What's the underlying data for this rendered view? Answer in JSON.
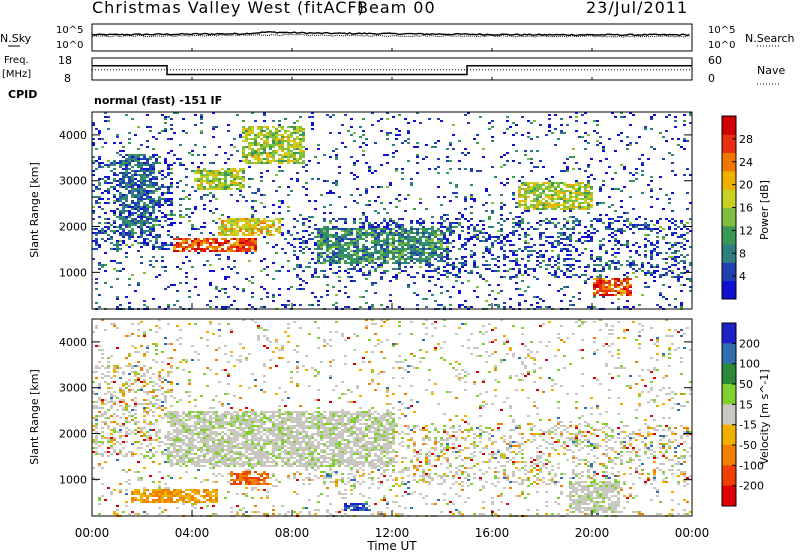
{
  "header": {
    "station": "Christmas Valley West (fitACF)",
    "beam": "Beam 00",
    "date": "23/Jul/2011"
  },
  "top_panels": {
    "noise_label": "N.Sky",
    "noise_right_label": "N.Search",
    "noise_ticks": [
      "10^5",
      "10^0"
    ],
    "freq_label_1": "Freq.",
    "freq_label_2": "[MHz]",
    "freq_ticks": [
      "18",
      "8"
    ],
    "nave_label": "Nave",
    "nave_ticks": [
      "60",
      "0"
    ],
    "cpid_label": "CPID",
    "cpid_text": "normal (fast) -151 IF"
  },
  "axes": {
    "x_label": "Time UT",
    "x_ticks": [
      "00:00",
      "04:00",
      "08:00",
      "12:00",
      "16:00",
      "20:00",
      "00:00"
    ],
    "y_label": "Slant Range [km]",
    "y_ticks": [
      "1000",
      "2000",
      "3000",
      "4000"
    ]
  },
  "chart_data": [
    {
      "type": "line",
      "name": "noise",
      "x_hours": [
        0,
        3,
        6,
        7,
        9,
        12,
        15,
        18,
        21,
        24
      ],
      "series": [
        {
          "name": "N.Sky",
          "values": [
            3.0,
            3.1,
            3.2,
            3.5,
            3.3,
            3.2,
            3.1,
            3.0,
            3.0,
            3.0
          ]
        },
        {
          "name": "N.Search",
          "values": [
            2.7,
            2.8,
            2.9,
            3.0,
            2.9,
            2.8,
            2.8,
            2.7,
            2.7,
            2.7
          ]
        }
      ],
      "ylim": [
        0,
        5
      ]
    },
    {
      "type": "line",
      "name": "frequency_nave",
      "series": [
        {
          "name": "Freq",
          "x": [
            0,
            3,
            3,
            15,
            15,
            24
          ],
          "values": [
            14.5,
            14.5,
            10.5,
            10.5,
            14.5,
            14.5
          ]
        },
        {
          "name": "Nave",
          "x": [
            0,
            24
          ],
          "values": [
            28,
            28
          ]
        }
      ],
      "freq_ylim": [
        8,
        18
      ],
      "nave_ylim": [
        0,
        60
      ]
    },
    {
      "type": "heatmap",
      "name": "power",
      "xlim": [
        0,
        24
      ],
      "ylim": [
        200,
        4500
      ],
      "colorbar": {
        "label": "Power [dB]",
        "ticks": [
          "4",
          "8",
          "12",
          "16",
          "20",
          "24",
          "28"
        ],
        "colors": [
          "#1010d0",
          "#2040b0",
          "#2f7f80",
          "#3a9a55",
          "#7fbf3f",
          "#c8d020",
          "#f0b000",
          "#f07800",
          "#e83010",
          "#d00000"
        ]
      },
      "features": [
        {
          "t0": 3.2,
          "t1": 6.5,
          "r0": 1450,
          "r1": 1750,
          "level": 8
        },
        {
          "t0": 5.0,
          "t1": 7.5,
          "r0": 1800,
          "r1": 2200,
          "level": 6
        },
        {
          "t0": 4.0,
          "t1": 6.0,
          "r0": 2800,
          "r1": 3300,
          "level": 5
        },
        {
          "t0": 6.0,
          "t1": 8.5,
          "r0": 3400,
          "r1": 4200,
          "level": 5
        },
        {
          "t0": 20.0,
          "t1": 21.5,
          "r0": 500,
          "r1": 900,
          "level": 8
        },
        {
          "t0": 17.0,
          "t1": 20.0,
          "r0": 2400,
          "r1": 3000,
          "level": 5
        },
        {
          "t0": 1.0,
          "t1": 2.5,
          "r0": 1800,
          "r1": 3600,
          "level": 2
        },
        {
          "t0": 9.0,
          "t1": 14.0,
          "r0": 1200,
          "r1": 2000,
          "level": 3
        }
      ]
    },
    {
      "type": "heatmap",
      "name": "velocity",
      "xlim": [
        0,
        24
      ],
      "ylim": [
        200,
        4500
      ],
      "colorbar": {
        "label": "Velocity [m s^-1]",
        "ticks": [
          "200",
          "100",
          "50",
          "15",
          "-15",
          "-50",
          "-100",
          "-200"
        ],
        "colors": [
          "#2020c8",
          "#2f6faf",
          "#2a8a3a",
          "#80d030",
          "#c8c8c0",
          "#f0b000",
          "#f08000",
          "#f04000",
          "#e00000"
        ]
      },
      "features": [
        {
          "t0": 5.5,
          "t1": 7.0,
          "r0": 900,
          "r1": 1200,
          "level": -100
        },
        {
          "t0": 1.5,
          "t1": 5.0,
          "r0": 500,
          "r1": 800,
          "level": -50
        },
        {
          "t0": 3.0,
          "t1": 12.0,
          "r0": 1300,
          "r1": 2500,
          "level": 0
        },
        {
          "t0": 19.0,
          "t1": 21.0,
          "r0": 300,
          "r1": 1000,
          "level": 0
        },
        {
          "t0": 10.0,
          "t1": 11.0,
          "r0": 350,
          "r1": 500,
          "level": 150
        }
      ]
    }
  ]
}
